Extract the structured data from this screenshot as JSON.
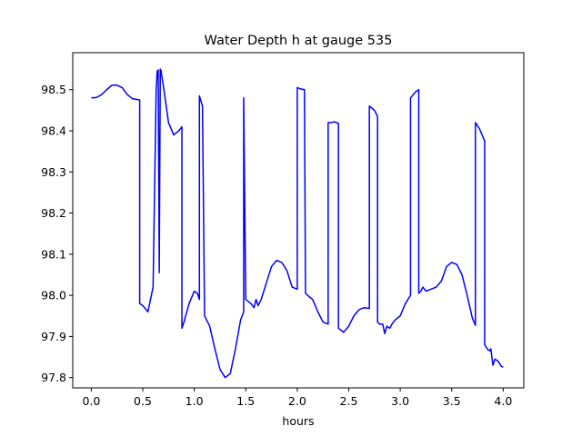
{
  "chart_data": {
    "type": "line",
    "title": "Water Depth h at gauge 535",
    "xlabel": "hours",
    "ylabel": "",
    "xlim": [
      -0.18,
      4.2
    ],
    "ylim": [
      97.775,
      98.59
    ],
    "xticks": [
      "0.0",
      "0.5",
      "1.0",
      "1.5",
      "2.0",
      "2.5",
      "3.0",
      "3.5",
      "4.0"
    ],
    "yticks": [
      "97.8",
      "97.9",
      "98.0",
      "98.1",
      "98.2",
      "98.3",
      "98.4",
      "98.5"
    ],
    "grid": false,
    "legend": "none",
    "series": [
      {
        "color": "#0000ff",
        "x": [
          0.0,
          0.05,
          0.1,
          0.15,
          0.2,
          0.25,
          0.3,
          0.35,
          0.4,
          0.45,
          0.47,
          0.47,
          0.5,
          0.55,
          0.6,
          0.63,
          0.64,
          0.65,
          0.66,
          0.67,
          0.68,
          0.68,
          0.7,
          0.75,
          0.8,
          0.85,
          0.88,
          0.88,
          0.9,
          0.95,
          1.0,
          1.03,
          1.05,
          1.05,
          1.08,
          1.1,
          1.15,
          1.2,
          1.25,
          1.3,
          1.35,
          1.4,
          1.45,
          1.48,
          1.48,
          1.5,
          1.55,
          1.58,
          1.6,
          1.62,
          1.65,
          1.7,
          1.75,
          1.8,
          1.85,
          1.9,
          1.95,
          2.0,
          2.0,
          2.03,
          2.07,
          2.08,
          2.1,
          2.15,
          2.2,
          2.25,
          2.3,
          2.3,
          2.33,
          2.36,
          2.4,
          2.4,
          2.45,
          2.5,
          2.55,
          2.6,
          2.65,
          2.7,
          2.7,
          2.75,
          2.78,
          2.78,
          2.8,
          2.83,
          2.85,
          2.87,
          2.9,
          2.92,
          2.95,
          3.0,
          3.05,
          3.1,
          3.1,
          3.15,
          3.18,
          3.18,
          3.2,
          3.22,
          3.25,
          3.3,
          3.35,
          3.4,
          3.45,
          3.5,
          3.55,
          3.6,
          3.65,
          3.7,
          3.73,
          3.73,
          3.77,
          3.82,
          3.82,
          3.85,
          3.87,
          3.88,
          3.9,
          3.92,
          3.95,
          3.98,
          4.0
        ],
        "y": [
          98.48,
          98.481,
          98.488,
          98.5,
          98.511,
          98.511,
          98.505,
          98.488,
          98.478,
          98.476,
          98.475,
          97.98,
          97.975,
          97.96,
          98.02,
          98.5,
          98.545,
          98.548,
          98.055,
          98.55,
          98.545,
          98.54,
          98.51,
          98.42,
          98.39,
          98.4,
          98.41,
          97.92,
          97.935,
          97.98,
          98.01,
          98.005,
          97.99,
          98.485,
          98.46,
          97.95,
          97.925,
          97.87,
          97.82,
          97.8,
          97.81,
          97.87,
          97.94,
          97.96,
          98.48,
          97.99,
          97.98,
          97.97,
          97.99,
          97.975,
          97.99,
          98.03,
          98.07,
          98.085,
          98.08,
          98.06,
          98.02,
          98.015,
          98.505,
          98.502,
          98.5,
          98.005,
          98.0,
          97.99,
          97.96,
          97.935,
          97.93,
          98.42,
          98.42,
          98.422,
          98.418,
          97.92,
          97.91,
          97.925,
          97.95,
          97.965,
          97.97,
          97.968,
          98.46,
          98.45,
          98.435,
          97.935,
          97.93,
          97.93,
          97.907,
          97.925,
          97.92,
          97.93,
          97.94,
          97.95,
          97.98,
          98.0,
          98.48,
          98.495,
          98.5,
          98.005,
          98.01,
          98.02,
          98.01,
          98.015,
          98.02,
          98.035,
          98.07,
          98.08,
          98.075,
          98.05,
          98.0,
          97.945,
          97.927,
          98.42,
          98.405,
          98.375,
          97.88,
          97.868,
          97.865,
          97.87,
          97.83,
          97.845,
          97.84,
          97.828,
          97.825
        ]
      }
    ]
  }
}
